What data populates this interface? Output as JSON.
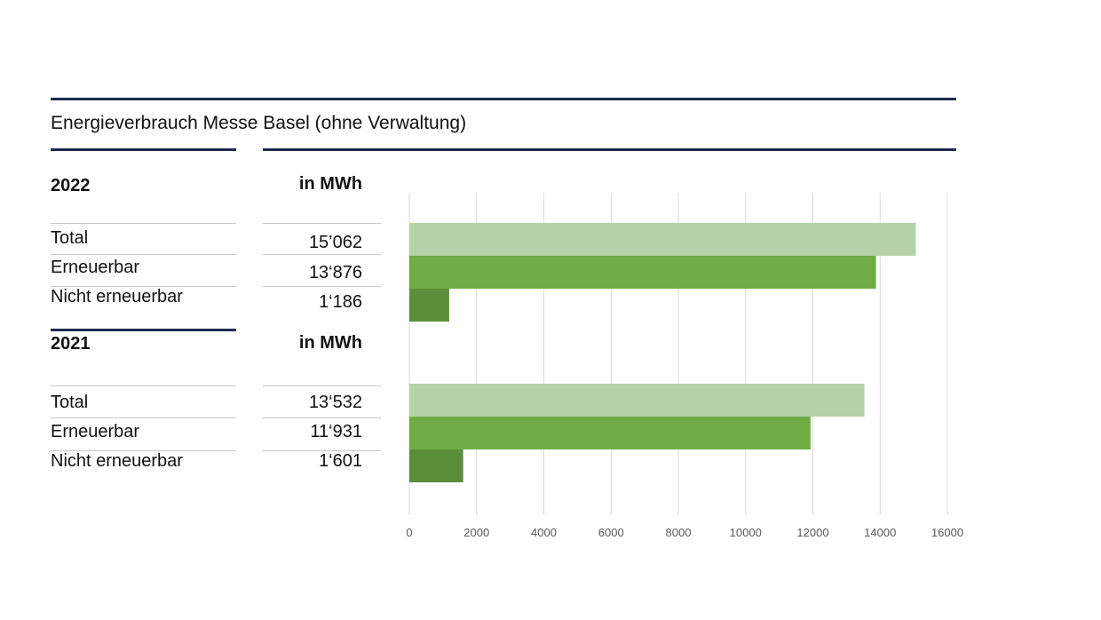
{
  "header": {
    "title": "Energieverbrauch Messe Basel (ohne Verwaltung)"
  },
  "groups": [
    {
      "year": "2022",
      "unit": "in MWh",
      "rows": [
        {
          "label": "Total",
          "value_text": "15’062"
        },
        {
          "label": "Erneuerbar",
          "value_text": "13‘876"
        },
        {
          "label": "Nicht erneuerbar",
          "value_text": "1‘186"
        }
      ]
    },
    {
      "year": "2021",
      "unit": "in MWh",
      "rows": [
        {
          "label": "Total",
          "value_text": "13‘532"
        },
        {
          "label": "Erneuerbar",
          "value_text": "11‘931"
        },
        {
          "label": "Nicht erneuerbar",
          "value_text": "1‘601"
        }
      ]
    }
  ],
  "chart_data": {
    "type": "bar",
    "orientation": "horizontal",
    "title": "Energieverbrauch Messe Basel (ohne Verwaltung)",
    "categories": [
      "2022",
      "2021"
    ],
    "series": [
      {
        "name": "Total",
        "values": [
          15062,
          13532
        ],
        "color": "#b5d2a8"
      },
      {
        "name": "Erneuerbar",
        "values": [
          13876,
          11931
        ],
        "color": "#6fad46"
      },
      {
        "name": "Nicht erneuerbar",
        "values": [
          1186,
          1601
        ],
        "color": "#5b8e39"
      }
    ],
    "xlim": [
      0,
      16000
    ],
    "xticks": [
      0,
      2000,
      4000,
      6000,
      8000,
      10000,
      12000,
      14000,
      16000
    ],
    "grid": "vertical",
    "legend": "none"
  }
}
